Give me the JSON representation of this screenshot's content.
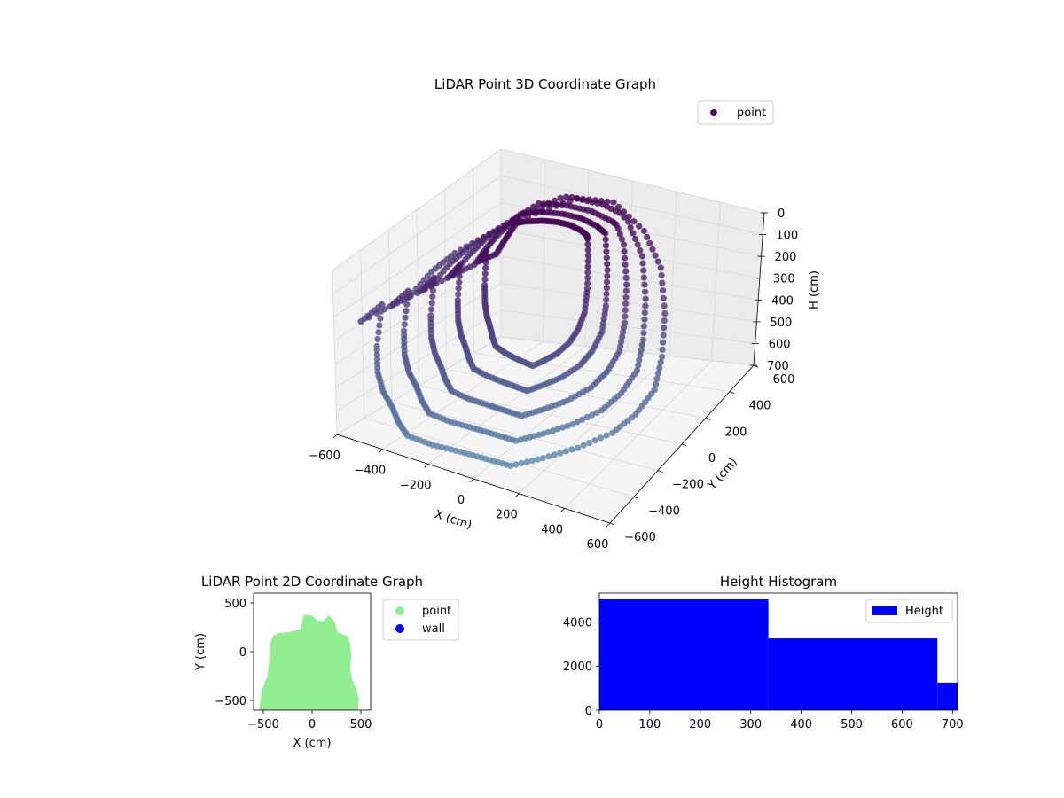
{
  "chart_data": [
    {
      "type": "scatter",
      "projection": "3d",
      "title": "LiDAR Point 3D Coordinate Graph",
      "xlabel": "X (cm)",
      "ylabel": "Y (cm)",
      "zlabel": "H (cm)",
      "xlim": [
        -600,
        600
      ],
      "ylim": [
        -600,
        600
      ],
      "zlim": [
        0,
        700
      ],
      "z_inverted": true,
      "xticks": [
        "−600",
        "−400",
        "−200",
        "0",
        "200",
        "400",
        "600"
      ],
      "yticks": [
        "−600",
        "−400",
        "−200",
        "0",
        "200",
        "400",
        "600"
      ],
      "zticks": [
        "0",
        "100",
        "200",
        "300",
        "400",
        "500",
        "600",
        "700"
      ],
      "grid": true,
      "legend": {
        "position": "top-right",
        "entries": [
          "point"
        ]
      },
      "series": [
        {
          "name": "point",
          "color_scale": [
            "#440154",
            "#5b8bb0"
          ],
          "samples": [
            {
              "x": -600,
              "y": -400,
              "h": 320
            },
            {
              "x": -560,
              "y": -300,
              "h": 290
            },
            {
              "x": -540,
              "y": -380,
              "h": 420
            },
            {
              "x": -500,
              "y": -450,
              "h": 480
            },
            {
              "x": -450,
              "y": -500,
              "h": 520
            },
            {
              "x": -400,
              "y": -520,
              "h": 560
            },
            {
              "x": -350,
              "y": -560,
              "h": 590
            },
            {
              "x": -300,
              "y": -580,
              "h": 620
            },
            {
              "x": -200,
              "y": -560,
              "h": 640
            },
            {
              "x": -100,
              "y": -520,
              "h": 660
            },
            {
              "x": 0,
              "y": -500,
              "h": 670
            },
            {
              "x": 100,
              "y": -480,
              "h": 680
            },
            {
              "x": 200,
              "y": -400,
              "h": 660
            },
            {
              "x": 300,
              "y": -300,
              "h": 640
            },
            {
              "x": 400,
              "y": -200,
              "h": 600
            },
            {
              "x": 450,
              "y": -100,
              "h": 560
            },
            {
              "x": 480,
              "y": 0,
              "h": 500
            },
            {
              "x": 460,
              "y": 100,
              "h": 420
            },
            {
              "x": 420,
              "y": 200,
              "h": 300
            },
            {
              "x": 350,
              "y": 300,
              "h": 180
            },
            {
              "x": 250,
              "y": 350,
              "h": 80
            },
            {
              "x": 100,
              "y": 380,
              "h": 20
            },
            {
              "x": -50,
              "y": 360,
              "h": 40
            },
            {
              "x": -200,
              "y": 300,
              "h": 120
            },
            {
              "x": -350,
              "y": 200,
              "h": 200
            },
            {
              "x": -450,
              "y": 100,
              "h": 260
            },
            {
              "x": -500,
              "y": 0,
              "h": 300
            },
            {
              "x": -520,
              "y": -150,
              "h": 330
            }
          ]
        }
      ]
    },
    {
      "type": "scatter",
      "title": "LiDAR Point 2D Coordinate Graph",
      "xlabel": "X (cm)",
      "ylabel": "Y (cm)",
      "xlim": [
        -600,
        600
      ],
      "ylim": [
        -600,
        600
      ],
      "xticks": [
        "−500",
        "0",
        "500"
      ],
      "yticks": [
        "−500",
        "0",
        "500"
      ],
      "legend": {
        "position": "outside-right",
        "entries": [
          "point",
          "wall"
        ]
      },
      "series": [
        {
          "name": "point",
          "color": "#90ee90",
          "outline": [
            [
              -540,
              -600
            ],
            [
              -520,
              -420
            ],
            [
              -490,
              -330
            ],
            [
              -460,
              -260
            ],
            [
              -450,
              -180
            ],
            [
              -440,
              -90
            ],
            [
              -430,
              -20
            ],
            [
              -430,
              80
            ],
            [
              -400,
              160
            ],
            [
              -340,
              190
            ],
            [
              -240,
              200
            ],
            [
              -120,
              230
            ],
            [
              -100,
              310
            ],
            [
              -80,
              380
            ],
            [
              0,
              370
            ],
            [
              50,
              320
            ],
            [
              110,
              310
            ],
            [
              170,
              370
            ],
            [
              230,
              310
            ],
            [
              260,
              200
            ],
            [
              360,
              160
            ],
            [
              390,
              80
            ],
            [
              400,
              -30
            ],
            [
              390,
              -180
            ],
            [
              410,
              -280
            ],
            [
              450,
              -380
            ],
            [
              480,
              -480
            ],
            [
              470,
              -600
            ]
          ]
        },
        {
          "name": "wall",
          "color": "#0000ff",
          "points": []
        }
      ]
    },
    {
      "type": "bar",
      "subtype": "histogram",
      "title": "Height Histogram",
      "xlim": [
        0,
        710
      ],
      "ylim": [
        0,
        5300
      ],
      "xticks": [
        "0",
        "100",
        "200",
        "300",
        "400",
        "500",
        "600",
        "700"
      ],
      "yticks": [
        "0",
        "2000",
        "4000"
      ],
      "legend": {
        "position": "top-right",
        "entries": [
          "Height"
        ]
      },
      "color": "#0000ff",
      "bins": [
        {
          "start": 0,
          "end": 335,
          "count": 5050
        },
        {
          "start": 335,
          "end": 670,
          "count": 3250
        },
        {
          "start": 670,
          "end": 710,
          "count": 1250
        }
      ]
    }
  ]
}
